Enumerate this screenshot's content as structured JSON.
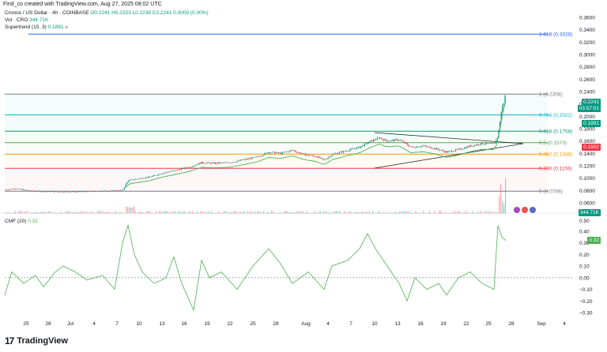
{
  "caption": "Find_co created with TradingView.com, Aug 27, 2025 08:02 UTC",
  "legend": {
    "symbol": "Cronos / US Dollar · 4h · COINBASE",
    "ohlc": "O0.2241 H0.2253 L0.2238 C0.2241 0.0000 (0.00%)",
    "vol_label": "Vol · CRO",
    "vol_value": "344.71K",
    "supertrend_label": "Supertrend (10, 3)",
    "supertrend_value": "0.1891"
  },
  "price_axis": {
    "ticks": [
      "0.3600",
      "0.3400",
      "0.3200",
      "0.3000",
      "0.2800",
      "0.2600",
      "0.2400",
      "0.2200",
      "0.2000",
      "0.1800",
      "0.1600",
      "0.1400",
      "0.1200",
      "0.1000",
      "0.0800",
      "0.0600"
    ],
    "tags": {
      "last_price": "0.2241",
      "countdown": "03:57:01",
      "supertrend": "0.1891",
      "support": "0.1502",
      "volume": "344.71K"
    }
  },
  "fib_levels": [
    {
      "label": "1.618 (0.3328)",
      "price": 0.3328,
      "color": "#2962ff"
    },
    {
      "label": "1 (0.2358)",
      "price": 0.2358,
      "color": "#787b86"
    },
    {
      "label": "0.786 (0.2022)",
      "price": 0.2022,
      "color": "#00bcd4"
    },
    {
      "label": "0.618 (0.1758)",
      "price": 0.1758,
      "color": "#089981"
    },
    {
      "label": "0.5 (0.1573)",
      "price": 0.1573,
      "color": "#4caf50"
    },
    {
      "label": "0.382 (0.1388)",
      "price": 0.1388,
      "color": "#ff9800"
    },
    {
      "label": "0.236 (0.1159)",
      "price": 0.1159,
      "color": "#f23645"
    },
    {
      "label": "0 (0.0789)",
      "price": 0.0789,
      "color": "#787b86"
    }
  ],
  "cmf": {
    "label": "CMF (20)",
    "value": "0.32",
    "ticks": [
      "0.40",
      "0.30",
      "0.20",
      "0.10",
      "0.00",
      "−0.10",
      "−0.20",
      "−0.30"
    ]
  },
  "x_axis": [
    "25",
    "28",
    "Jul",
    "4",
    "7",
    "10",
    "13",
    "16",
    "19",
    "22",
    "25",
    "28",
    "Aug",
    "4",
    "7",
    "10",
    "13",
    "16",
    "19",
    "22",
    "25",
    "28",
    "Sep",
    "4"
  ],
  "brand": "TradingView",
  "colors": {
    "up": "#089981",
    "down": "#f23645",
    "supertrend_up": "#4caf50",
    "cmf_line": "#4caf50"
  },
  "chart_data": {
    "type": "line",
    "title": "Cronos / US Dollar · 4h · COINBASE",
    "ylim": [
      0.05,
      0.37
    ],
    "x": [
      "Jun 25",
      "Jul 1",
      "Jul 7",
      "Jul 10",
      "Jul 19",
      "Jul 28",
      "Aug 4",
      "Aug 10",
      "Aug 16",
      "Aug 22",
      "Aug 25",
      "Aug 26",
      "Aug 27"
    ],
    "series": [
      {
        "name": "",
        "values": [
          0.08,
          0.077,
          0.078,
          0.1,
          0.127,
          0.138,
          0.135,
          0.165,
          0.152,
          0.148,
          0.156,
          0.198,
          0.2241
        ]
      }
    ]
  }
}
